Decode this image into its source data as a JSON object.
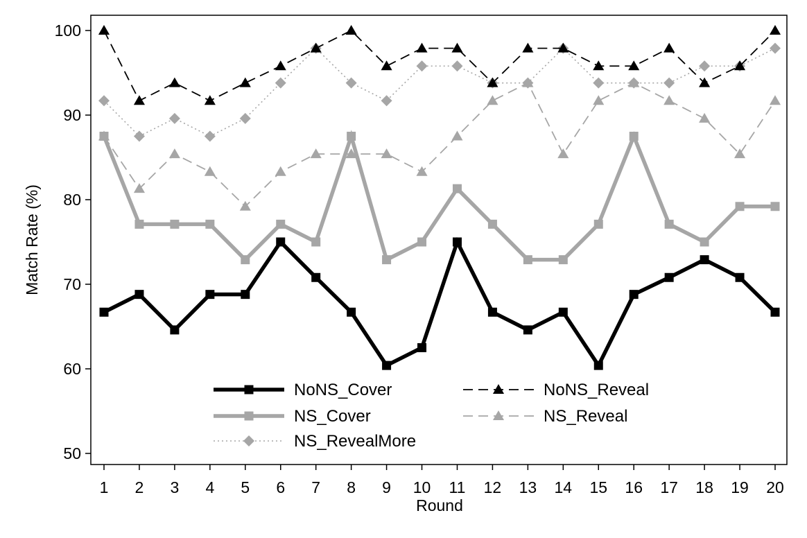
{
  "chart_data": {
    "type": "line",
    "title": "",
    "xlabel": "Round",
    "ylabel": "Match Rate (%)",
    "x": [
      1,
      2,
      3,
      4,
      5,
      6,
      7,
      8,
      9,
      10,
      11,
      12,
      13,
      14,
      15,
      16,
      17,
      18,
      19,
      20
    ],
    "xticks": [
      "1",
      "2",
      "3",
      "4",
      "5",
      "6",
      "7",
      "8",
      "9",
      "10",
      "11",
      "12",
      "13",
      "14",
      "15",
      "16",
      "17",
      "18",
      "19",
      "20"
    ],
    "yticks": [
      "50",
      "60",
      "70",
      "80",
      "90",
      "100"
    ],
    "ylim": [
      50,
      100
    ],
    "xlim": [
      1,
      20
    ],
    "grid": false,
    "legend_position": "bottom-center-inside",
    "series": [
      {
        "name": "NoNS_Cover",
        "color": "#000000",
        "line": "solid-thick",
        "marker": "square",
        "values": [
          66.7,
          68.8,
          64.6,
          68.8,
          68.8,
          75.0,
          70.8,
          66.7,
          60.4,
          62.5,
          75.0,
          66.7,
          64.6,
          66.7,
          60.4,
          68.8,
          70.8,
          72.9,
          70.8,
          66.7
        ]
      },
      {
        "name": "NoNS_Reveal",
        "color": "#000000",
        "line": "dashed",
        "marker": "triangle",
        "values": [
          100.0,
          91.7,
          93.8,
          91.7,
          93.8,
          95.8,
          97.9,
          100.0,
          95.8,
          97.9,
          97.9,
          93.8,
          97.9,
          97.9,
          95.8,
          95.8,
          97.9,
          93.8,
          95.8,
          100.0
        ]
      },
      {
        "name": "NS_Cover",
        "color": "#a6a6a6",
        "line": "solid-thick",
        "marker": "square",
        "values": [
          87.5,
          77.1,
          77.1,
          77.1,
          72.9,
          77.1,
          75.0,
          87.5,
          72.9,
          75.0,
          81.3,
          77.1,
          72.9,
          72.9,
          77.1,
          87.5,
          77.1,
          75.0,
          79.2,
          79.2
        ]
      },
      {
        "name": "NS_Reveal",
        "color": "#a6a6a6",
        "line": "dashed",
        "marker": "triangle",
        "values": [
          87.5,
          81.3,
          85.4,
          83.3,
          79.2,
          83.3,
          85.4,
          85.4,
          85.4,
          83.3,
          87.5,
          91.7,
          93.8,
          85.4,
          91.7,
          93.8,
          91.7,
          89.6,
          85.4,
          91.7
        ]
      },
      {
        "name": "NS_RevealMore",
        "color": "#a6a6a6",
        "line": "dotted",
        "marker": "diamond",
        "values": [
          91.7,
          87.5,
          89.6,
          87.5,
          89.6,
          93.8,
          97.9,
          93.8,
          91.7,
          95.8,
          95.8,
          93.8,
          93.8,
          97.9,
          93.8,
          93.8,
          93.8,
          95.8,
          95.8,
          97.9
        ]
      }
    ]
  }
}
